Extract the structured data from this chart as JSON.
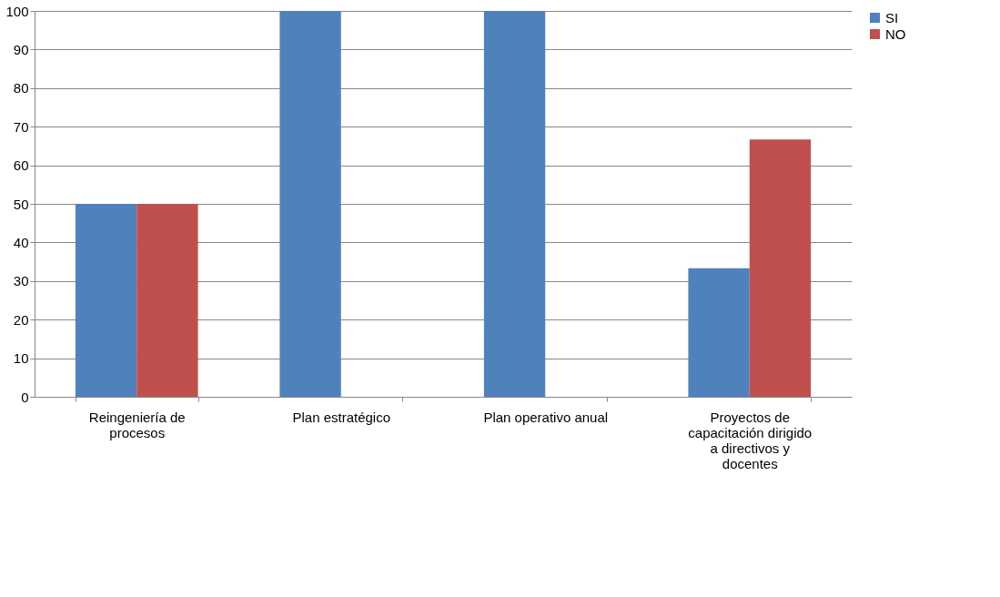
{
  "chart_data": {
    "type": "bar",
    "categories": [
      "Reingeniería de procesos",
      "Plan estratégico",
      "Plan operativo anual",
      "Proyectos de capacitación dirigido a directivos y docentes"
    ],
    "series": [
      {
        "name": "SI",
        "color": "#4f81bd",
        "values": [
          50,
          100,
          100,
          33.3
        ]
      },
      {
        "name": "NO",
        "color": "#c0504d",
        "values": [
          50,
          0,
          0,
          66.7
        ]
      }
    ],
    "ylim": [
      0,
      100
    ],
    "yticks": [
      0,
      10,
      20,
      30,
      40,
      50,
      60,
      70,
      80,
      90,
      100
    ],
    "grid": "y",
    "legend": "right"
  }
}
